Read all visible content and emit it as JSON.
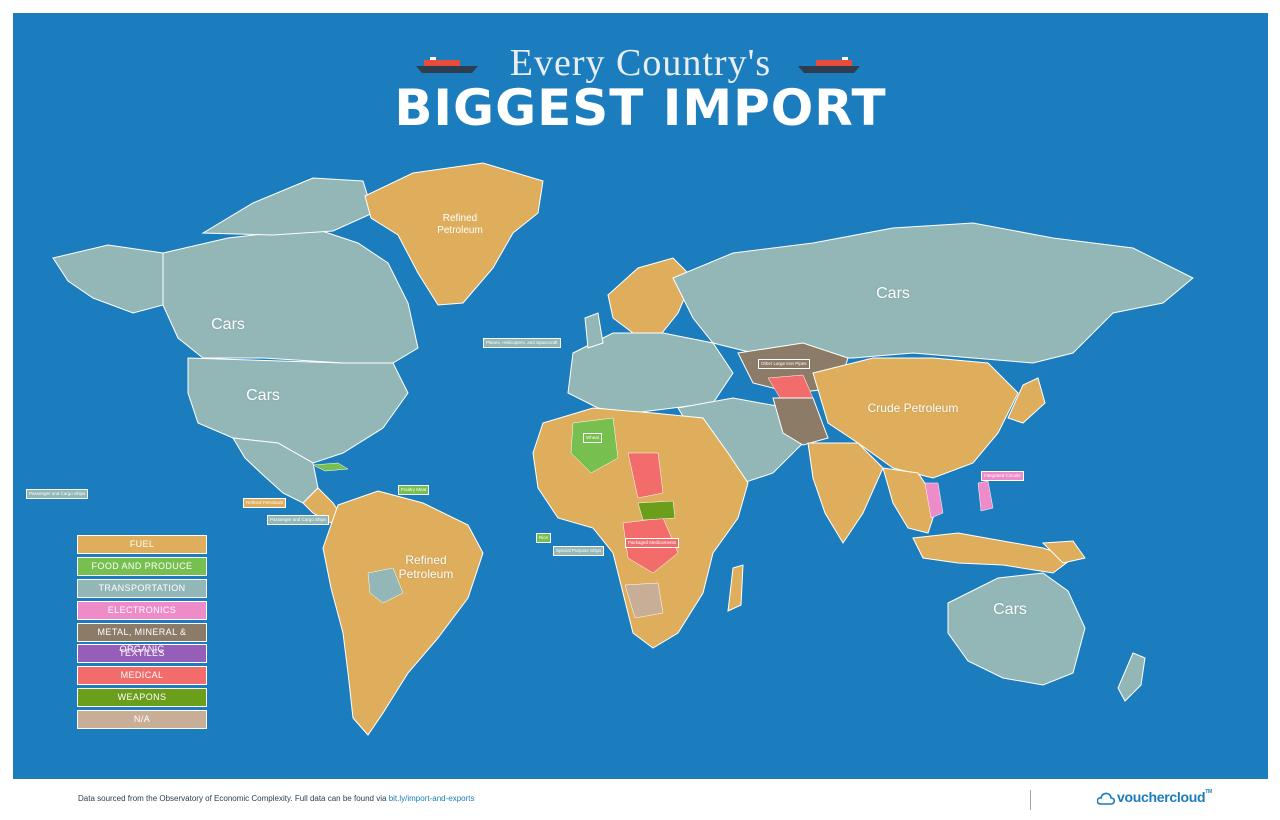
{
  "title": {
    "line1": "Every Country's",
    "line2": "BIGGEST IMPORT"
  },
  "colors": {
    "ocean": "#1b7dbd",
    "fuel": "#deae5c",
    "food": "#77bf4f",
    "transport": "#93b7b7",
    "electronics": "#ee8cc9",
    "metal": "#8c7b67",
    "textiles": "#955eb8",
    "medical": "#f36c6c",
    "weapons": "#6b9e1b",
    "na": "#c9ae97"
  },
  "legend": [
    {
      "label": "FUEL",
      "color": "#deae5c"
    },
    {
      "label": "FOOD AND PRODUCE",
      "color": "#77bf4f"
    },
    {
      "label": "TRANSPORTATION",
      "color": "#93b7b7"
    },
    {
      "label": "ELECTRONICS",
      "color": "#ee8cc9"
    },
    {
      "label": "METAL, MINERAL & ORGANIC",
      "color": "#8c7b67"
    },
    {
      "label": "TEXTILES",
      "color": "#955eb8"
    },
    {
      "label": "MEDICAL",
      "color": "#f36c6c"
    },
    {
      "label": "WEAPONS",
      "color": "#6b9e1b"
    },
    {
      "label": "N/A",
      "color": "#c9ae97"
    }
  ],
  "regions": {
    "greenland": {
      "line1": "Refined",
      "line2": "Petroleum"
    },
    "canada": "Cars",
    "usa": "Cars",
    "russia": "Cars",
    "china": "Crude Petroleum",
    "brazil": {
      "line1": "Refined",
      "line2": "Petroleum"
    },
    "australia": "Cars"
  },
  "tags": {
    "passenger_ships_pacific": "Passenger and Cargo Ships",
    "refined_petroleum_central_america": "Refined Petroleum",
    "passenger_ships_caribbean": "Passenger and Cargo Ships",
    "poultry_meat": "Poultry Meat",
    "planes": "Planes, Helicopters, and Spacecraft",
    "other_pipes": "Other Large Iron Pipes",
    "integrated_circuits": "Integrated Circuits",
    "special_purpose_ships": "Special Purpose Ships",
    "rice": "Rice",
    "wheat": "Wheat",
    "packaged_medicaments": "Packaged Medicaments"
  },
  "footer": {
    "text": "Data sourced from the Observatory of Economic Complexity. Full data can be found via",
    "link": "bit.ly/import-and-exports",
    "brand": "vouchercloud",
    "tm": "TM"
  }
}
